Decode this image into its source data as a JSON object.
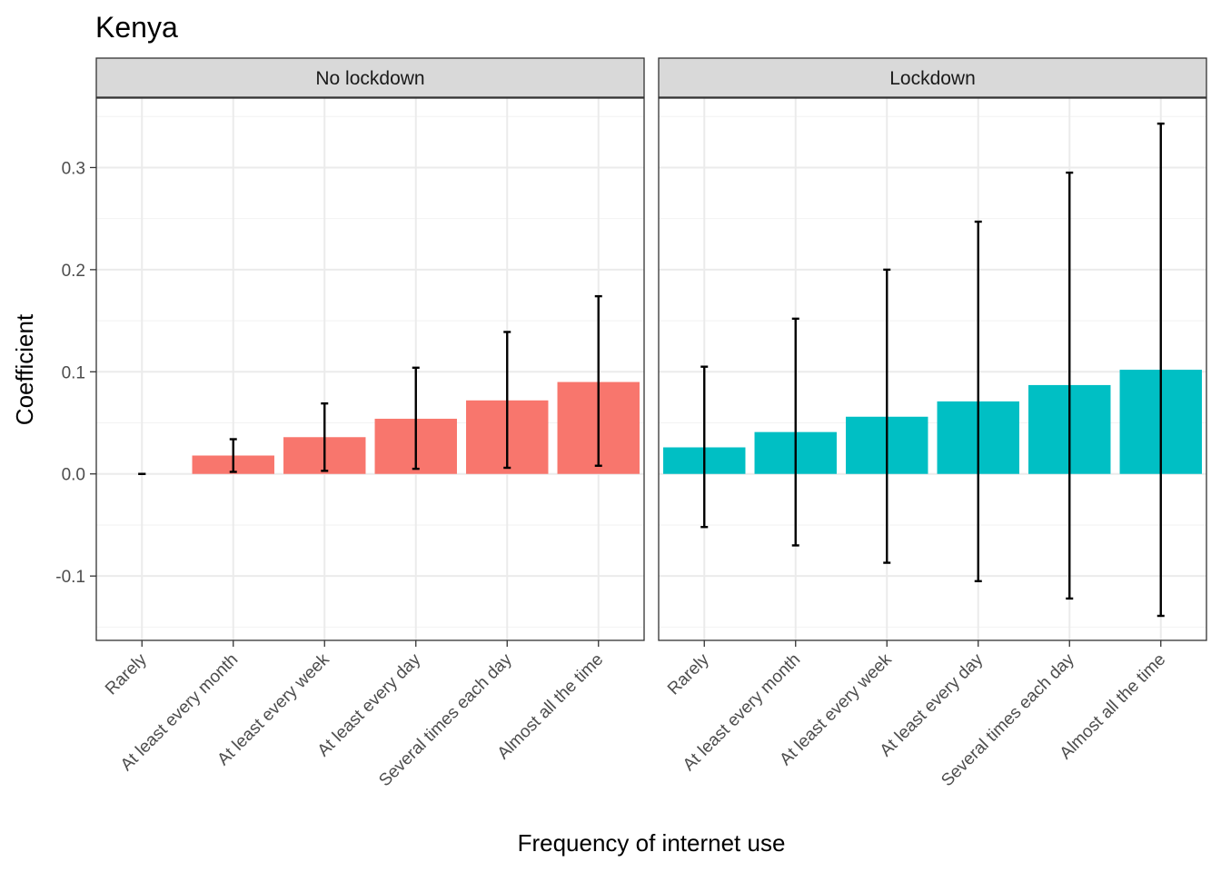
{
  "chart_data": {
    "type": "bar",
    "title": "Kenya",
    "xlabel": "Frequency of internet use",
    "ylabel": "Coefficient",
    "ylim": [
      -0.163,
      0.368
    ],
    "yticks": [
      "-0.1",
      "0.0",
      "0.1",
      "0.2",
      "0.3"
    ],
    "ytick_values": [
      -0.1,
      0.0,
      0.1,
      0.2,
      0.3
    ],
    "grid": true,
    "legend": "none",
    "categories": [
      "Rarely",
      "At least every month",
      "At least every week",
      "At least every day",
      "Several times each day",
      "Almost all the time"
    ],
    "panels": [
      {
        "name": "No lockdown",
        "color": "#F8766D",
        "values": [
          0.0,
          0.018,
          0.036,
          0.054,
          0.072,
          0.09
        ],
        "lower": [
          0.0,
          0.002,
          0.003,
          0.005,
          0.006,
          0.008
        ],
        "upper": [
          0.0,
          0.034,
          0.069,
          0.104,
          0.139,
          0.174
        ]
      },
      {
        "name": "Lockdown",
        "color": "#00BFC4",
        "values": [
          0.026,
          0.041,
          0.056,
          0.071,
          0.087,
          0.102
        ],
        "lower": [
          -0.052,
          -0.07,
          -0.087,
          -0.105,
          -0.122,
          -0.139
        ],
        "upper": [
          0.105,
          0.152,
          0.2,
          0.247,
          0.295,
          0.343
        ]
      }
    ]
  }
}
